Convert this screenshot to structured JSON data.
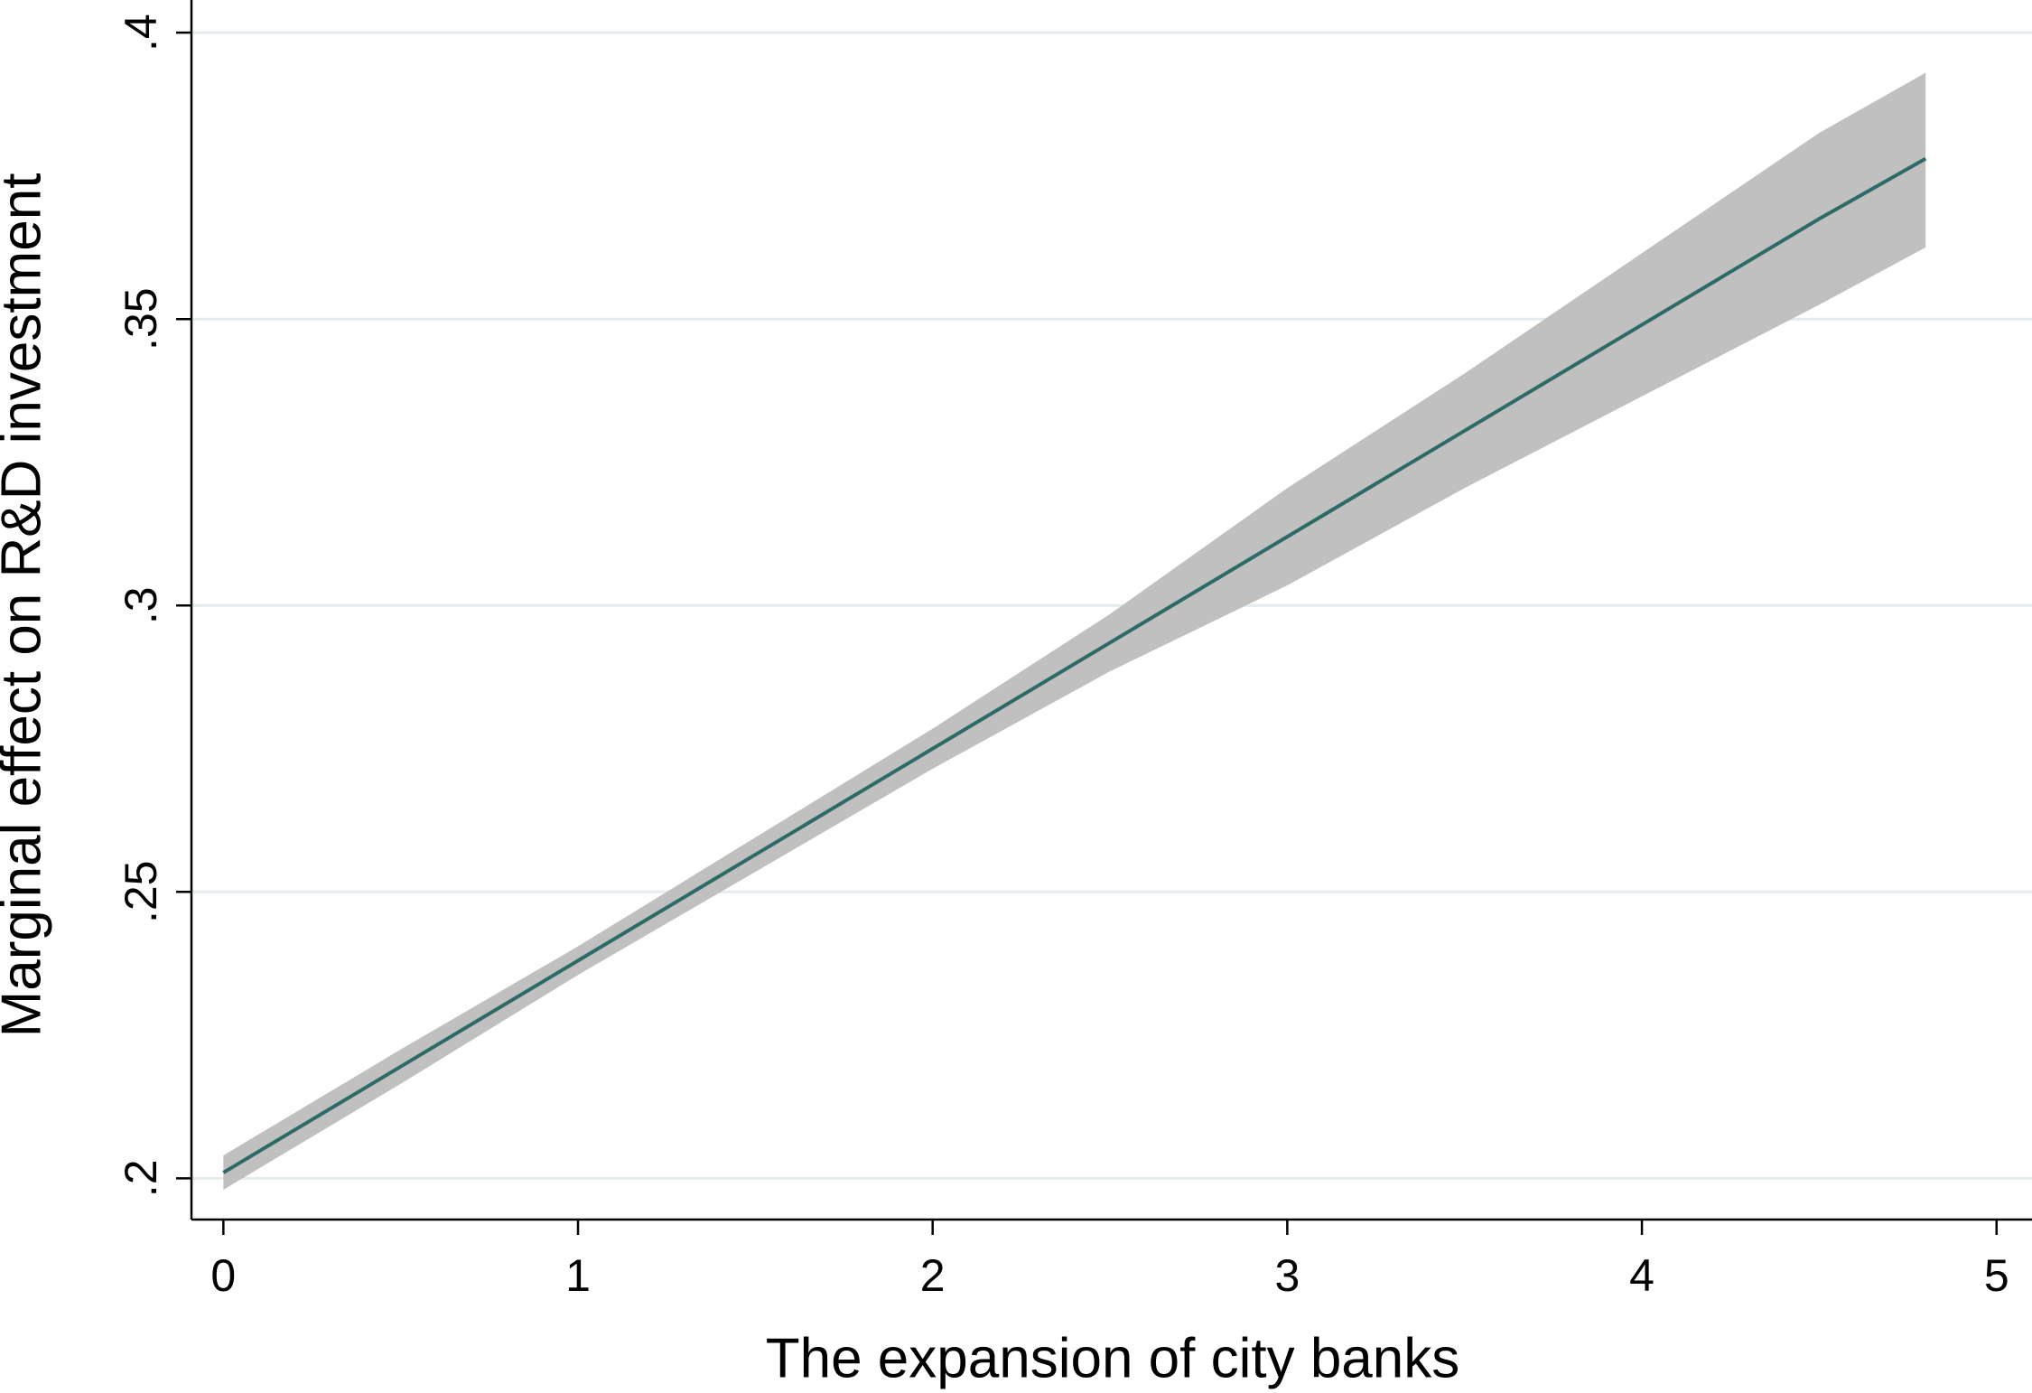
{
  "chart_data": {
    "type": "line",
    "xlabel": "The expansion of city banks",
    "ylabel": "Marginal effect on R&D investment",
    "x": [
      0,
      0.5,
      1,
      1.5,
      2,
      2.5,
      3,
      3.5,
      4,
      4.5,
      4.8
    ],
    "series": [
      {
        "color": "#2e6b66",
        "values": [
          0.201,
          0.2195,
          0.238,
          0.2565,
          0.275,
          0.2935,
          0.312,
          0.3305,
          0.349,
          0.3675,
          0.378
        ],
        "lower": [
          0.198,
          0.2165,
          0.2355,
          0.2535,
          0.2715,
          0.2885,
          0.3035,
          0.3205,
          0.3365,
          0.3525,
          0.3625
        ],
        "upper": [
          0.204,
          0.2225,
          0.2405,
          0.2595,
          0.2785,
          0.2985,
          0.3205,
          0.3405,
          0.3615,
          0.3825,
          0.393
        ],
        "band_color": "#c0c0c0"
      }
    ],
    "xlim": [
      -0.09,
      5.1
    ],
    "ylim": [
      0.1928,
      0.4057
    ],
    "xticks": [
      0,
      1,
      2,
      3,
      4,
      5
    ],
    "yticks": [
      {
        "value": 0.2,
        "label": ".2"
      },
      {
        "value": 0.25,
        "label": ".25"
      },
      {
        "value": 0.3,
        "label": ".3"
      },
      {
        "value": 0.35,
        "label": ".35"
      },
      {
        "value": 0.4,
        "label": ".4"
      }
    ],
    "grid": true
  }
}
